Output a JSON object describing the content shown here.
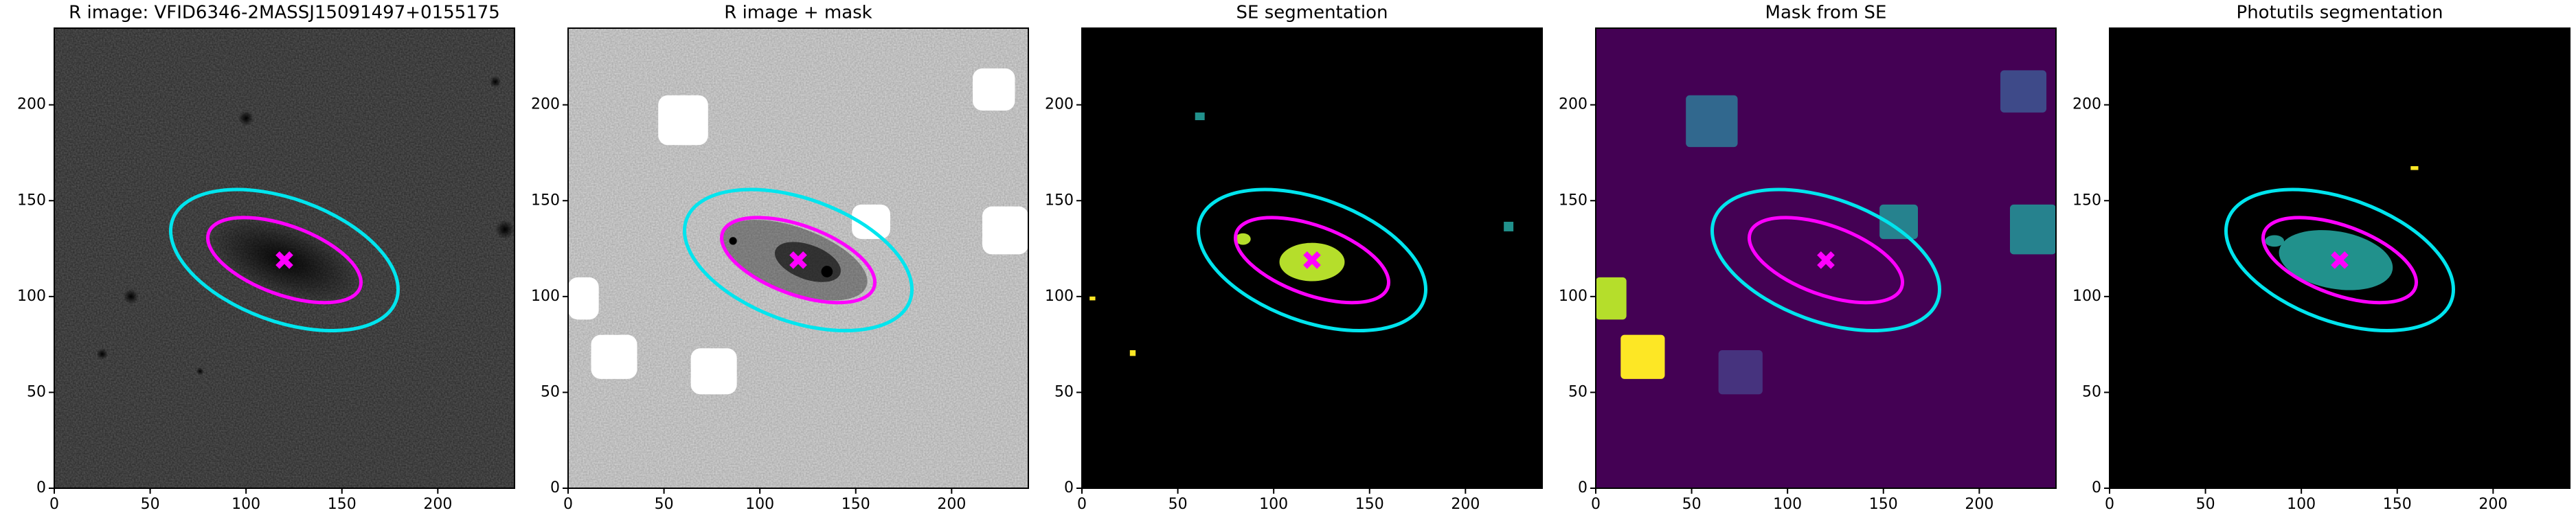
{
  "chart_data": [
    {
      "type": "image",
      "title": "R image: VFID6346-2MASSJ15091497+0155175",
      "background": "#5a5a5a",
      "texture": "dark",
      "xlim": [
        0,
        240
      ],
      "ylim": [
        0,
        240
      ],
      "xticks": [
        0,
        50,
        100,
        150,
        200
      ],
      "yticks": [
        0,
        50,
        100,
        150,
        200
      ],
      "ellipses": [
        {
          "cx": 120,
          "cy": 119,
          "width": 124,
          "height": 64,
          "angle": -20,
          "color": "#00e5ee"
        },
        {
          "cx": 120,
          "cy": 119,
          "width": 84,
          "height": 36,
          "angle": -20,
          "color": "#ff00ff"
        }
      ],
      "marker": {
        "x": 120,
        "y": 119,
        "color": "#ff00ff"
      }
    },
    {
      "type": "image",
      "title": "R image + mask",
      "background": "#d9d9d9",
      "texture": "light",
      "xlim": [
        0,
        240
      ],
      "ylim": [
        0,
        240
      ],
      "xticks": [
        0,
        50,
        100,
        150,
        200
      ],
      "yticks": [
        0,
        50,
        100,
        150,
        200
      ],
      "ellipses": [
        {
          "cx": 120,
          "cy": 119,
          "width": 124,
          "height": 64,
          "angle": -20,
          "color": "#00e5ee"
        },
        {
          "cx": 120,
          "cy": 119,
          "width": 84,
          "height": 36,
          "angle": -20,
          "color": "#ff00ff"
        }
      ],
      "marker": {
        "x": 120,
        "y": 119,
        "color": "#ff00ff"
      }
    },
    {
      "type": "image",
      "title": "SE segmentation",
      "background": "#000000",
      "texture": "none",
      "xlim": [
        0,
        240
      ],
      "ylim": [
        0,
        240
      ],
      "xticks": [
        0,
        50,
        100,
        150,
        200
      ],
      "yticks": [
        0,
        50,
        100,
        150,
        200
      ],
      "ellipses": [
        {
          "cx": 120,
          "cy": 119,
          "width": 124,
          "height": 64,
          "angle": -20,
          "color": "#00e5ee"
        },
        {
          "cx": 120,
          "cy": 119,
          "width": 84,
          "height": 36,
          "angle": -20,
          "color": "#ff00ff"
        }
      ],
      "marker": {
        "x": 120,
        "y": 119,
        "color": "#ff00ff"
      }
    },
    {
      "type": "image",
      "title": "Mask from SE",
      "background": "#440154",
      "texture": "none",
      "xlim": [
        0,
        240
      ],
      "ylim": [
        0,
        240
      ],
      "xticks": [
        0,
        50,
        100,
        150,
        200
      ],
      "yticks": [
        0,
        50,
        100,
        150,
        200
      ],
      "ellipses": [
        {
          "cx": 120,
          "cy": 119,
          "width": 124,
          "height": 64,
          "angle": -20,
          "color": "#00e5ee"
        },
        {
          "cx": 120,
          "cy": 119,
          "width": 84,
          "height": 36,
          "angle": -20,
          "color": "#ff00ff"
        }
      ],
      "marker": {
        "x": 120,
        "y": 119,
        "color": "#ff00ff"
      }
    },
    {
      "type": "image",
      "title": "Photutils segmentation",
      "background": "#000000",
      "texture": "none",
      "xlim": [
        0,
        240
      ],
      "ylim": [
        0,
        240
      ],
      "xticks": [
        0,
        50,
        100,
        150,
        200
      ],
      "yticks": [
        0,
        50,
        100,
        150,
        200
      ],
      "ellipses": [
        {
          "cx": 120,
          "cy": 119,
          "width": 124,
          "height": 64,
          "angle": -20,
          "color": "#00e5ee"
        },
        {
          "cx": 120,
          "cy": 119,
          "width": 84,
          "height": 36,
          "angle": -20,
          "color": "#ff00ff"
        }
      ],
      "marker": {
        "x": 120,
        "y": 119,
        "color": "#ff00ff"
      }
    }
  ]
}
